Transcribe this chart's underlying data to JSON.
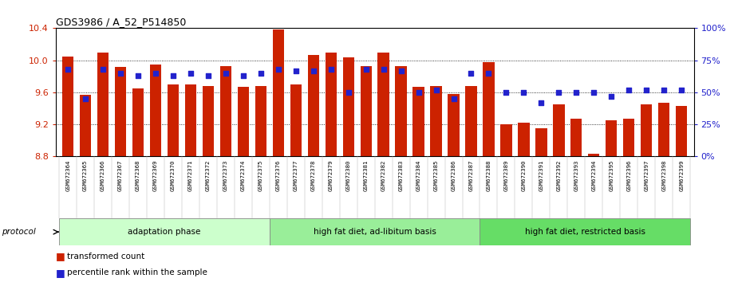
{
  "title": "GDS3986 / A_52_P514850",
  "samples": [
    "GSM672364",
    "GSM672365",
    "GSM672366",
    "GSM672367",
    "GSM672368",
    "GSM672369",
    "GSM672370",
    "GSM672371",
    "GSM672372",
    "GSM672373",
    "GSM672374",
    "GSM672375",
    "GSM672376",
    "GSM672377",
    "GSM672378",
    "GSM672379",
    "GSM672380",
    "GSM672381",
    "GSM672382",
    "GSM672383",
    "GSM672384",
    "GSM672385",
    "GSM672386",
    "GSM672387",
    "GSM672388",
    "GSM672389",
    "GSM672390",
    "GSM672391",
    "GSM672392",
    "GSM672393",
    "GSM672394",
    "GSM672395",
    "GSM672396",
    "GSM672397",
    "GSM672398",
    "GSM672399"
  ],
  "bar_values": [
    10.05,
    9.57,
    10.1,
    9.92,
    9.65,
    9.95,
    9.7,
    9.7,
    9.68,
    9.93,
    9.67,
    9.68,
    10.38,
    9.7,
    10.07,
    10.1,
    10.04,
    9.93,
    10.1,
    9.93,
    9.67,
    9.68,
    9.58,
    9.68,
    9.98,
    9.2,
    9.22,
    9.15,
    9.45,
    9.27,
    8.83,
    9.25,
    9.27,
    9.45,
    9.47,
    9.43
  ],
  "percentile_values": [
    68,
    45,
    68,
    65,
    63,
    65,
    63,
    65,
    63,
    65,
    63,
    65,
    68,
    67,
    67,
    68,
    50,
    68,
    68,
    67,
    50,
    52,
    45,
    65,
    65,
    50,
    50,
    42,
    50,
    50,
    50,
    47,
    52,
    52,
    52,
    52
  ],
  "groups": [
    {
      "label": "adaptation phase",
      "start": 0,
      "end": 12,
      "color": "#ccffcc"
    },
    {
      "label": "high fat diet, ad-libitum basis",
      "start": 12,
      "end": 24,
      "color": "#99ee99"
    },
    {
      "label": "high fat diet, restricted basis",
      "start": 24,
      "end": 36,
      "color": "#66dd66"
    }
  ],
  "ylim_left": [
    8.8,
    10.4
  ],
  "ylim_right": [
    0,
    100
  ],
  "yticks_left": [
    8.8,
    9.2,
    9.6,
    10.0,
    10.4
  ],
  "yticks_right": [
    0,
    25,
    50,
    75,
    100
  ],
  "bar_color": "#cc2200",
  "dot_color": "#2222cc",
  "background_color": "#ffffff",
  "protocol_label": "protocol",
  "legend_bar": "transformed count",
  "legend_dot": "percentile rank within the sample",
  "xlabel_bg": "#dddddd",
  "group_border_color": "#888888"
}
